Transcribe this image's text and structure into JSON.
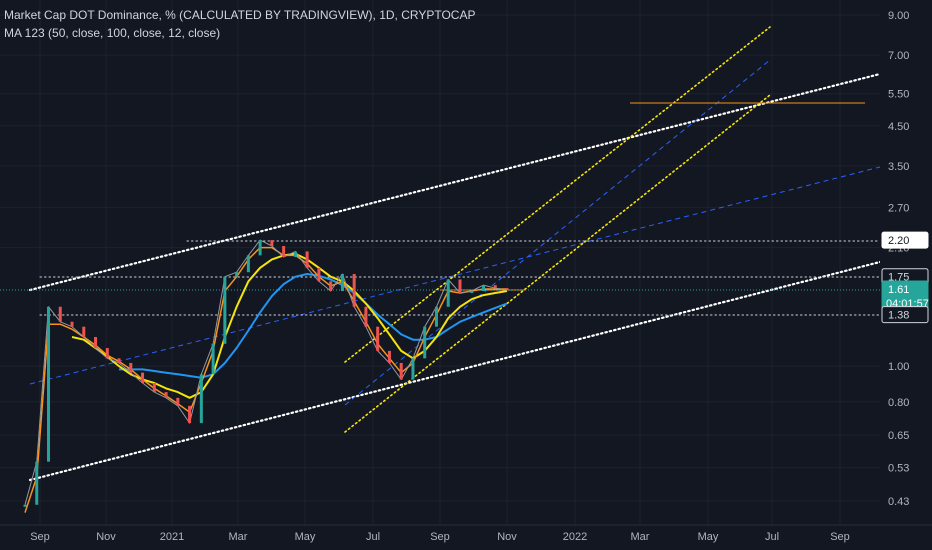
{
  "header": {
    "title": "Market Cap DOT Dominance, % (CALCULATED BY TRADINGVIEW), 1D, CRYPTOCAP",
    "indicator": "MA 123 (50, close, 100, close, 12, close)"
  },
  "colors": {
    "background": "#131722",
    "fast_ma": "#f7931a",
    "mid_ma": "#f5e50b",
    "slow_ma": "#2196f3",
    "last_price_tag": "#26a69a",
    "text": "#b2b5be"
  },
  "chart_data": {
    "type": "line",
    "title": "Market Cap DOT Dominance, % (CALCULATED BY TRADINGVIEW), 1D, CRYPTOCAP",
    "y_scale": "log",
    "y_ticks": [
      "9.00",
      "7.00",
      "5.50",
      "4.50",
      "3.50",
      "2.70",
      "2.10",
      "1.00",
      "0.80",
      "0.65",
      "0.53",
      "0.43"
    ],
    "x_ticks": [
      "Sep",
      "Nov",
      "2021",
      "Mar",
      "May",
      "Jul",
      "Sep",
      "Nov",
      "2022",
      "Mar",
      "May",
      "Jul",
      "Sep"
    ],
    "price_tags": [
      {
        "label": "2.20",
        "value": 2.2,
        "style": "white"
      },
      {
        "label": "1.75",
        "value": 1.75,
        "style": "dark"
      },
      {
        "label": "1.61",
        "value": 1.61,
        "sub": "04:01:57",
        "style": "teal"
      },
      {
        "label": "1.38",
        "value": 1.38,
        "style": "dark"
      }
    ],
    "series": [
      {
        "name": "Price",
        "values": [
          0.42,
          0.55,
          1.45,
          1.32,
          1.28,
          1.2,
          1.12,
          1.05,
          1.02,
          0.96,
          0.9,
          0.85,
          0.82,
          0.78,
          0.7,
          0.95,
          1.15,
          1.75,
          1.8,
          2.0,
          2.2,
          2.12,
          1.98,
          2.05,
          1.85,
          1.7,
          1.6,
          1.78,
          1.45,
          1.28,
          1.1,
          1.02,
          0.92,
          1.05,
          1.28,
          1.45,
          1.72,
          1.58,
          1.6,
          1.66,
          1.63,
          1.61
        ]
      },
      {
        "name": "MA 12",
        "values": [
          0.4,
          0.5,
          1.3,
          1.3,
          1.26,
          1.2,
          1.14,
          1.07,
          1.03,
          0.98,
          0.92,
          0.87,
          0.83,
          0.79,
          0.75,
          0.9,
          1.1,
          1.6,
          1.75,
          1.95,
          2.1,
          2.1,
          2.0,
          2.0,
          1.9,
          1.75,
          1.65,
          1.7,
          1.5,
          1.32,
          1.15,
          1.05,
          0.96,
          1.02,
          1.2,
          1.38,
          1.6,
          1.58,
          1.6,
          1.62,
          1.62,
          1.62
        ]
      },
      {
        "name": "MA 50",
        "values": [
          null,
          null,
          null,
          null,
          1.2,
          1.18,
          1.12,
          1.06,
          1.0,
          0.95,
          0.92,
          0.9,
          0.87,
          0.85,
          0.82,
          0.85,
          0.95,
          1.2,
          1.45,
          1.7,
          1.85,
          1.95,
          2.0,
          2.02,
          1.95,
          1.85,
          1.75,
          1.7,
          1.6,
          1.48,
          1.35,
          1.22,
          1.1,
          1.05,
          1.1,
          1.2,
          1.35,
          1.45,
          1.52,
          1.56,
          1.58,
          1.6
        ]
      },
      {
        "name": "MA 100",
        "values": [
          null,
          null,
          null,
          null,
          null,
          null,
          null,
          null,
          0.98,
          0.98,
          0.98,
          0.97,
          0.96,
          0.95,
          0.94,
          0.93,
          0.95,
          1.02,
          1.12,
          1.25,
          1.4,
          1.55,
          1.67,
          1.75,
          1.78,
          1.76,
          1.72,
          1.66,
          1.58,
          1.48,
          1.38,
          1.3,
          1.22,
          1.18,
          1.18,
          1.2,
          1.26,
          1.32,
          1.36,
          1.4,
          1.44,
          1.48
        ]
      }
    ]
  }
}
